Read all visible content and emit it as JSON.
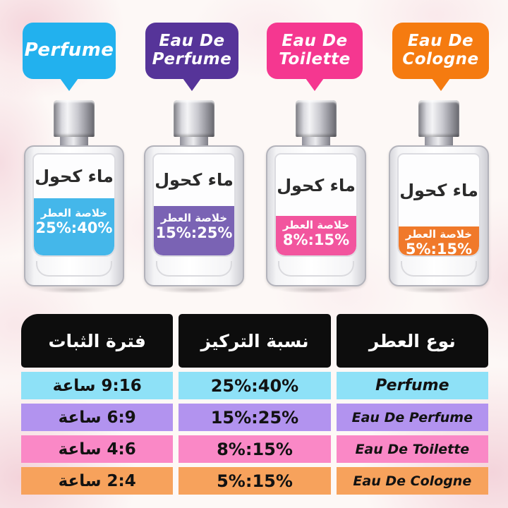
{
  "bubbles": [
    {
      "label": "Perfume",
      "color": "#22b1ee"
    },
    {
      "label": "Eau De\nPerfume",
      "color": "#563499"
    },
    {
      "label": "Eau De\nToilette",
      "color": "#f53790"
    },
    {
      "label": "Eau De\nCologne",
      "color": "#f57b10"
    }
  ],
  "bottles": [
    {
      "solvent_label": "ماء كحول",
      "essence_label": "خلاصة العطر",
      "essence_range": "25%:40%",
      "fill_percent": 57,
      "liquid_color": "#44b7ea"
    },
    {
      "solvent_label": "ماء كحول",
      "essence_label": "خلاصة العطر",
      "essence_range": "15%:25%",
      "fill_percent": 49,
      "liquid_color": "#7a63b4"
    },
    {
      "solvent_label": "ماء كحول",
      "essence_label": "خلاصة العطر",
      "essence_range": "8%:15%",
      "fill_percent": 39,
      "liquid_color": "#f2559e"
    },
    {
      "solvent_label": "ماء كحول",
      "essence_label": "خلاصة العطر",
      "essence_range": "5%:15%",
      "fill_percent": 29,
      "liquid_color": "#f0792a"
    }
  ],
  "table": {
    "header_bg": "#0d0d0d",
    "headers": {
      "duration": "فترة الثبات",
      "concentration": "نسبة التركيز",
      "type": "نوع العطر"
    },
    "rows": [
      {
        "duration": "9:16 ساعة",
        "concentration": "25%:40%",
        "type": "Perfume",
        "row_color": "#8ee1f7"
      },
      {
        "duration": "6:9 ساعة",
        "concentration": "15%:25%",
        "type": "Eau De Perfume",
        "row_color": "#b293ef"
      },
      {
        "duration": "4:6 ساعة",
        "concentration": "8%:15%",
        "type": "Eau De Toilette",
        "row_color": "#fa88c6"
      },
      {
        "duration": "2:4 ساعة",
        "concentration": "5%:15%",
        "type": "Eau De Cologne",
        "row_color": "#f7a25c"
      }
    ]
  }
}
